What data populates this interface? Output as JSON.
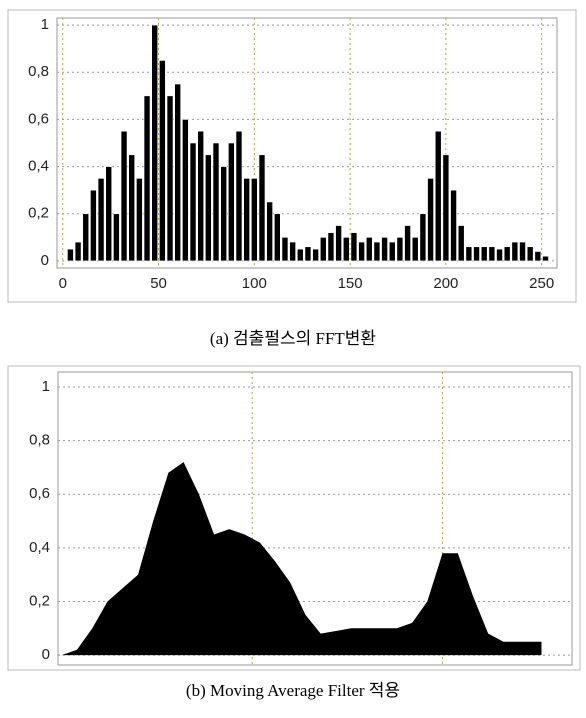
{
  "chart_data": [
    {
      "type": "bar",
      "title": "(a)  검출펄스의 FFT변환",
      "color": "#000000",
      "x": [
        0,
        4,
        8,
        12,
        16,
        20,
        24,
        28,
        32,
        36,
        40,
        44,
        48,
        52,
        56,
        60,
        64,
        68,
        72,
        76,
        80,
        84,
        88,
        92,
        96,
        100,
        104,
        108,
        112,
        116,
        120,
        124,
        128,
        132,
        136,
        140,
        144,
        148,
        152,
        156,
        160,
        164,
        168,
        172,
        176,
        180,
        184,
        188,
        192,
        196,
        200,
        204,
        208,
        212,
        216,
        220,
        224,
        228,
        232,
        236,
        240,
        244,
        248,
        252
      ],
      "values": [
        0,
        0.05,
        0.08,
        0.2,
        0.3,
        0.35,
        0.4,
        0.2,
        0.55,
        0.45,
        0.35,
        0.7,
        1.0,
        0.85,
        0.7,
        0.75,
        0.6,
        0.5,
        0.55,
        0.45,
        0.5,
        0.4,
        0.5,
        0.55,
        0.35,
        0.35,
        0.45,
        0.25,
        0.2,
        0.1,
        0.08,
        0.05,
        0.06,
        0.05,
        0.1,
        0.12,
        0.15,
        0.1,
        0.12,
        0.08,
        0.1,
        0.08,
        0.1,
        0.08,
        0.1,
        0.15,
        0.1,
        0.2,
        0.35,
        0.55,
        0.45,
        0.3,
        0.15,
        0.06,
        0.06,
        0.06,
        0.06,
        0.05,
        0.06,
        0.08,
        0.08,
        0.06,
        0.04,
        0.02
      ],
      "xlim": [
        -3,
        258
      ],
      "ylim": [
        -0.03,
        1.03
      ],
      "xticks": [
        0,
        50,
        100,
        150,
        200,
        250
      ],
      "yticks": [
        0,
        {
          "value": 0.2,
          "label": "0,2"
        },
        {
          "value": 0.4,
          "label": "0,4"
        },
        {
          "value": 0.6,
          "label": "0,6"
        },
        {
          "value": 0.8,
          "label": "0,8"
        },
        1
      ],
      "grid": true
    },
    {
      "type": "area",
      "title": "(b)  Moving  Average  Filter  적용",
      "color": "#000000",
      "x": [
        0,
        8,
        16,
        24,
        32,
        40,
        48,
        56,
        64,
        72,
        80,
        88,
        96,
        104,
        112,
        120,
        128,
        136,
        144,
        152,
        160,
        168,
        176,
        184,
        192,
        200,
        208,
        216,
        224,
        232,
        240,
        248,
        252
      ],
      "values": [
        0,
        0.02,
        0.1,
        0.2,
        0.25,
        0.3,
        0.5,
        0.68,
        0.72,
        0.6,
        0.45,
        0.47,
        0.45,
        0.42,
        0.35,
        0.27,
        0.15,
        0.08,
        0.09,
        0.1,
        0.1,
        0.1,
        0.1,
        0.12,
        0.2,
        0.38,
        0.38,
        0.22,
        0.08,
        0.05,
        0.05,
        0.05,
        0.05
      ],
      "xlim": [
        -2,
        268
      ],
      "ylim": [
        -0.037,
        1.056
      ],
      "xgrid": [
        100,
        200
      ],
      "yticks": [
        0,
        {
          "value": 0.2,
          "label": "0,2"
        },
        {
          "value": 0.4,
          "label": "0,4"
        },
        {
          "value": 0.6,
          "label": "0,6"
        },
        {
          "value": 0.8,
          "label": "0,8"
        },
        1
      ],
      "grid": true
    }
  ]
}
